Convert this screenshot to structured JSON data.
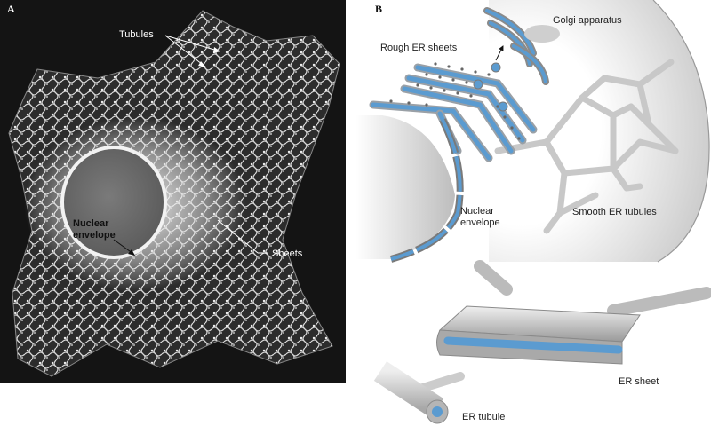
{
  "panel_a": {
    "letter": "A",
    "labels": {
      "tubules": "Tubules",
      "nuclear_envelope_line1": "Nuclear",
      "nuclear_envelope_line2": "envelope",
      "sheets": "Sheets"
    }
  },
  "panel_b": {
    "letter": "B",
    "labels": {
      "golgi": "Golgi apparatus",
      "rough_er": "Rough ER sheets",
      "nuclear_envelope_line1": "Nuclear",
      "nuclear_envelope_line2": "envelope",
      "smooth_er": "Smooth ER tubules",
      "er_sheet": "ER sheet",
      "er_tubule": "ER tubule"
    }
  },
  "colors": {
    "er_blue": "#5b9bd0",
    "membrane_gray": "#c8c8c8",
    "micrograph_bg": "#141414"
  }
}
